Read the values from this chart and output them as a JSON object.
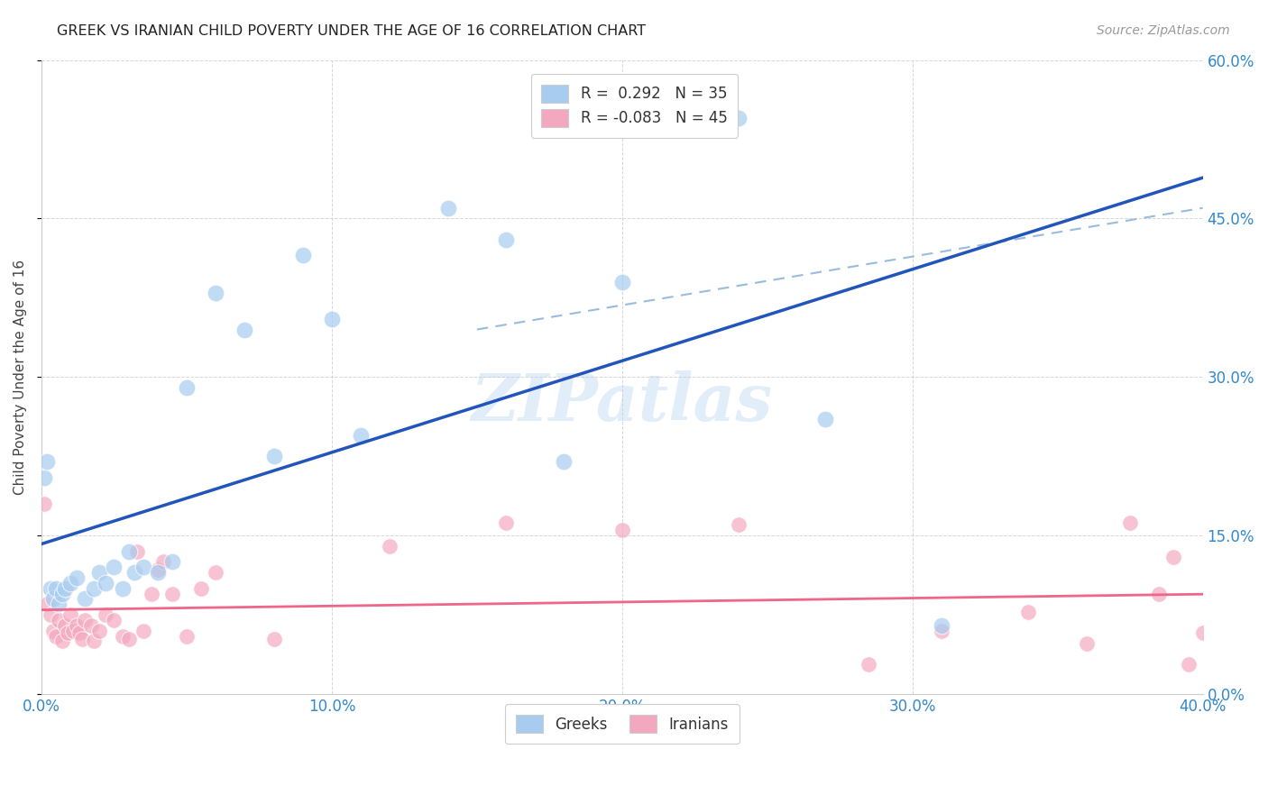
{
  "title": "GREEK VS IRANIAN CHILD POVERTY UNDER THE AGE OF 16 CORRELATION CHART",
  "source": "Source: ZipAtlas.com",
  "ylabel": "Child Poverty Under the Age of 16",
  "xlim": [
    0.0,
    0.4
  ],
  "ylim": [
    0.0,
    0.6
  ],
  "xticks": [
    0.0,
    0.1,
    0.2,
    0.3,
    0.4
  ],
  "xtick_labels": [
    "0.0%",
    "10.0%",
    "20.0%",
    "30.0%",
    "40.0%"
  ],
  "yticks": [
    0.0,
    0.15,
    0.3,
    0.45,
    0.6
  ],
  "ytick_labels": [
    "0.0%",
    "15.0%",
    "30.0%",
    "45.0%",
    "60.0%"
  ],
  "greek_color": "#A8CCF0",
  "iranian_color": "#F4A8C0",
  "greek_line_color": "#2255BB",
  "iranian_line_color": "#EE6688",
  "dashed_line_color": "#99BBDD",
  "background_color": "#FFFFFF",
  "greek_R": 0.292,
  "greek_N": 35,
  "iranian_R": -0.083,
  "iranian_N": 45,
  "legend_label_greek": "R =  0.292   N = 35",
  "legend_label_iranian": "R = -0.083   N = 45",
  "watermark": "ZIPatlas",
  "greeks_label": "Greeks",
  "iranians_label": "Iranians",
  "greek_x": [
    0.001,
    0.002,
    0.003,
    0.004,
    0.005,
    0.006,
    0.007,
    0.008,
    0.01,
    0.012,
    0.015,
    0.018,
    0.02,
    0.022,
    0.025,
    0.028,
    0.03,
    0.032,
    0.035,
    0.04,
    0.045,
    0.05,
    0.06,
    0.07,
    0.08,
    0.09,
    0.1,
    0.11,
    0.14,
    0.16,
    0.18,
    0.2,
    0.24,
    0.27,
    0.31
  ],
  "greek_y": [
    0.205,
    0.22,
    0.1,
    0.09,
    0.1,
    0.085,
    0.095,
    0.1,
    0.105,
    0.11,
    0.09,
    0.1,
    0.115,
    0.105,
    0.12,
    0.1,
    0.135,
    0.115,
    0.12,
    0.115,
    0.125,
    0.29,
    0.38,
    0.345,
    0.225,
    0.415,
    0.355,
    0.245,
    0.46,
    0.43,
    0.22,
    0.39,
    0.545,
    0.26,
    0.065
  ],
  "iranian_x": [
    0.001,
    0.002,
    0.003,
    0.004,
    0.005,
    0.006,
    0.007,
    0.008,
    0.009,
    0.01,
    0.011,
    0.012,
    0.013,
    0.014,
    0.015,
    0.017,
    0.018,
    0.02,
    0.022,
    0.025,
    0.028,
    0.03,
    0.033,
    0.035,
    0.038,
    0.04,
    0.042,
    0.045,
    0.05,
    0.055,
    0.06,
    0.08,
    0.12,
    0.16,
    0.2,
    0.24,
    0.285,
    0.31,
    0.34,
    0.36,
    0.375,
    0.385,
    0.39,
    0.395,
    0.4
  ],
  "iranian_y": [
    0.18,
    0.085,
    0.075,
    0.06,
    0.055,
    0.07,
    0.05,
    0.065,
    0.058,
    0.075,
    0.06,
    0.065,
    0.058,
    0.052,
    0.07,
    0.065,
    0.05,
    0.06,
    0.075,
    0.07,
    0.055,
    0.052,
    0.135,
    0.06,
    0.095,
    0.118,
    0.125,
    0.095,
    0.055,
    0.1,
    0.115,
    0.052,
    0.14,
    0.162,
    0.155,
    0.16,
    0.028,
    0.06,
    0.078,
    0.048,
    0.162,
    0.095,
    0.13,
    0.028,
    0.058
  ]
}
